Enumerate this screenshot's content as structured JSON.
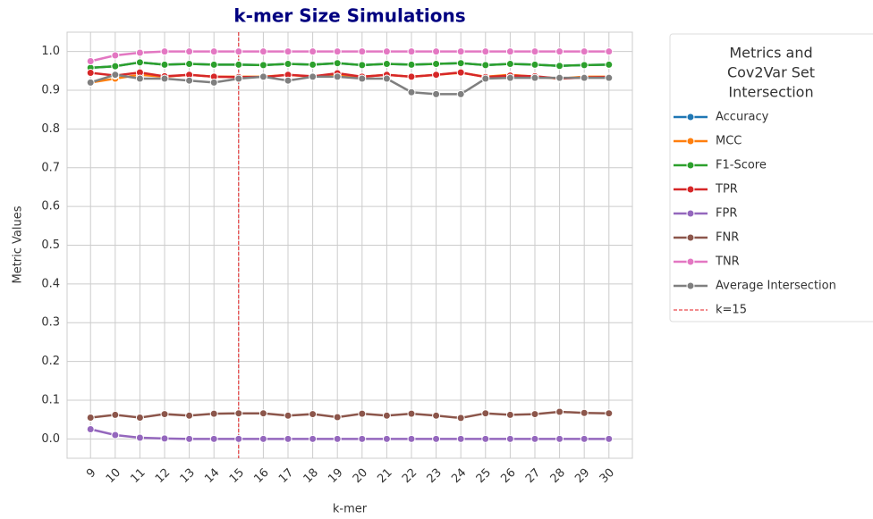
{
  "chart_data": {
    "type": "line",
    "title": "k-mer Size Simulations",
    "xlabel": "k-mer",
    "ylabel": "Metric Values",
    "legend_title": [
      "Metrics and",
      "Cov2Var Set",
      "Intersection"
    ],
    "x": [
      9,
      10,
      11,
      12,
      13,
      14,
      15,
      16,
      17,
      18,
      19,
      20,
      21,
      22,
      23,
      24,
      25,
      26,
      27,
      28,
      29,
      30
    ],
    "xlim": [
      8.05,
      30.95
    ],
    "xticks": [
      9,
      10,
      11,
      12,
      13,
      14,
      15,
      16,
      17,
      18,
      19,
      20,
      21,
      22,
      23,
      24,
      25,
      26,
      27,
      28,
      29,
      30
    ],
    "ylim": [
      -0.05,
      1.05
    ],
    "yticks": [
      {
        "value": 0,
        "label": "0.0"
      },
      {
        "value": 0.1,
        "label": "0.1"
      },
      {
        "value": 0.2,
        "label": "0.2"
      },
      {
        "value": 0.3,
        "label": "0.3"
      },
      {
        "value": 0.4,
        "label": "0.4"
      },
      {
        "value": 0.5,
        "label": "0.5"
      },
      {
        "value": 0.6,
        "label": "0.6"
      },
      {
        "value": 0.7,
        "label": "0.7"
      },
      {
        "value": 0.8,
        "label": "0.8"
      },
      {
        "value": 0.9,
        "label": "0.9"
      },
      {
        "value": 1,
        "label": "1.0"
      }
    ],
    "grid": true,
    "series": [
      {
        "name": "Accuracy",
        "color": "#1f77b4",
        "values": [
          0.958,
          0.962,
          0.972,
          0.966,
          0.968,
          0.966,
          0.966,
          0.965,
          0.968,
          0.966,
          0.97,
          0.965,
          0.968,
          0.966,
          0.968,
          0.97,
          0.965,
          0.968,
          0.966,
          0.963,
          0.965,
          0.966
        ]
      },
      {
        "name": "MCC",
        "color": "#ff7f0e",
        "values": [
          0.92,
          0.93,
          0.94,
          0.935,
          0.94,
          0.935,
          0.935,
          0.935,
          0.94,
          0.935,
          0.94,
          0.935,
          0.94,
          0.935,
          0.94,
          0.945,
          0.935,
          0.94,
          0.935,
          0.93,
          0.935,
          0.935
        ]
      },
      {
        "name": "F1-Score",
        "color": "#2ca02c",
        "values": [
          0.958,
          0.962,
          0.972,
          0.966,
          0.968,
          0.966,
          0.966,
          0.965,
          0.968,
          0.966,
          0.97,
          0.965,
          0.968,
          0.966,
          0.968,
          0.97,
          0.965,
          0.968,
          0.966,
          0.963,
          0.965,
          0.966
        ]
      },
      {
        "name": "TPR",
        "color": "#d62728",
        "values": [
          0.945,
          0.938,
          0.946,
          0.936,
          0.94,
          0.935,
          0.934,
          0.934,
          0.94,
          0.936,
          0.944,
          0.935,
          0.94,
          0.935,
          0.94,
          0.946,
          0.934,
          0.938,
          0.936,
          0.93,
          0.933,
          0.934
        ]
      },
      {
        "name": "FPR",
        "color": "#9467bd",
        "values": [
          0.025,
          0.01,
          0.003,
          0.001,
          0,
          0,
          0,
          0,
          0,
          0,
          0,
          0,
          0,
          0,
          0,
          0,
          0,
          0,
          0,
          0,
          0,
          0
        ]
      },
      {
        "name": "FNR",
        "color": "#8c564b",
        "values": [
          0.055,
          0.062,
          0.055,
          0.064,
          0.06,
          0.065,
          0.066,
          0.066,
          0.06,
          0.064,
          0.056,
          0.065,
          0.06,
          0.065,
          0.06,
          0.054,
          0.066,
          0.062,
          0.064,
          0.07,
          0.067,
          0.066
        ]
      },
      {
        "name": "TNR",
        "color": "#e377c2",
        "values": [
          0.975,
          0.99,
          0.997,
          1,
          1,
          1,
          1,
          1,
          1,
          1,
          1,
          1,
          1,
          1,
          1,
          1,
          1,
          1,
          1,
          1,
          1,
          1
        ]
      },
      {
        "name": "Average Intersection",
        "color": "#7f7f7f",
        "values": [
          0.92,
          0.94,
          0.93,
          0.93,
          0.925,
          0.92,
          0.93,
          0.935,
          0.925,
          0.935,
          0.935,
          0.93,
          0.93,
          0.895,
          0.89,
          0.89,
          0.93,
          0.932,
          0.932,
          0.932,
          0.932,
          0.932
        ]
      }
    ],
    "vline": {
      "x": 15,
      "label": "k=15",
      "color": "#e41a1c"
    }
  }
}
